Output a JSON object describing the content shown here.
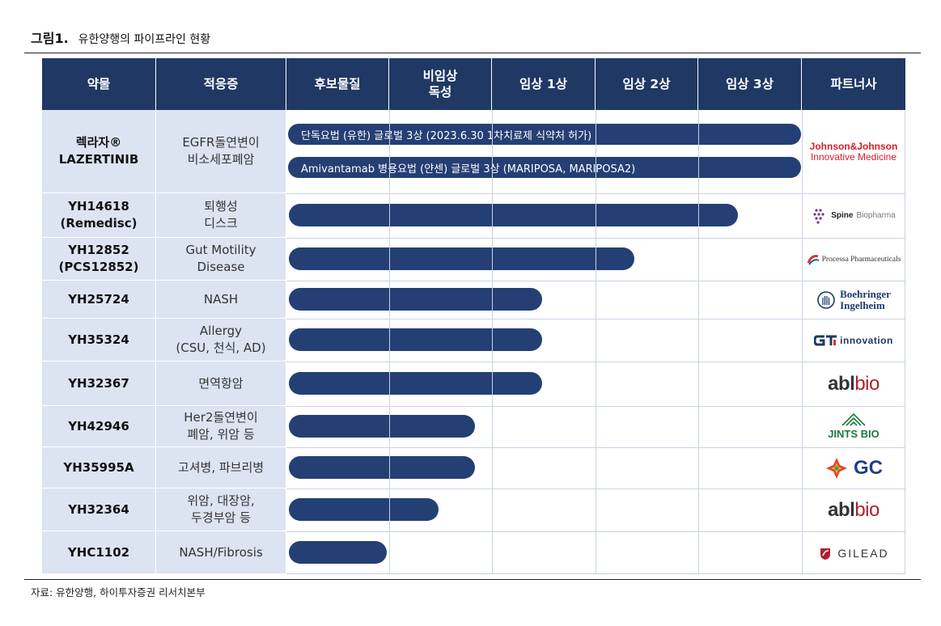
{
  "figure": {
    "number": "그림1.",
    "title": "유한양행의 파이프라인 현황",
    "source": "자료: 유한양행, 하이투자증권 리서치본부"
  },
  "columns": [
    "약물",
    "적응증",
    "후보물질",
    "비임상\n독성",
    "임상 1상",
    "임상 2상",
    "임상 3상",
    "파트너사"
  ],
  "rows": [
    {
      "drug": "렉라자®\nLAZERTINIB",
      "indication": "EGFR돌연변이\n비소세포폐암",
      "partner": "Johnson&Johnson Innovative Medicine",
      "bars": [
        "단독요법 (유한) 글로벌 3상  (2023.6.30 1차치료제  식약처 허가)",
        "Amivantamab 병용요법 (얀센)  글로벌 3상 (MARIPOSA, MARIPOSA2)"
      ]
    },
    {
      "drug": "YH14618\n(Remedisc)",
      "indication": "퇴행성\n디스크",
      "partner": "SpineBiopharma",
      "progress_stage": 4.4
    },
    {
      "drug": "YH12852\n(PCS12852)",
      "indication": "Gut Motility\nDisease",
      "partner": "Processa Pharmaceuticals",
      "progress_stage": 3.4
    },
    {
      "drug": "YH25724",
      "indication": "NASH",
      "partner": "Boehringer Ingelheim",
      "progress_stage": 2.5
    },
    {
      "drug": "YH35324",
      "indication": "Allergy\n(CSU, 천식, AD)",
      "partner": "GI innovation",
      "progress_stage": 2.5
    },
    {
      "drug": "YH32367",
      "indication": "면역항암",
      "partner": "ablbio",
      "progress_stage": 2.5
    },
    {
      "drug": "YH42946",
      "indication": "Her2돌연변이\n폐암, 위암 등",
      "partner": "JINTS BIO",
      "progress_stage": 1.85
    },
    {
      "drug": "YH35995A",
      "indication": "고셔병, 파브리병",
      "partner": "GC",
      "progress_stage": 1.85
    },
    {
      "drug": "YH32364",
      "indication": "위암, 대장암,\n두경부암 등",
      "partner": "ablbio",
      "progress_stage": 1.5
    },
    {
      "drug": "YHC1102",
      "indication": "NASH/Fibrosis",
      "partner": "GILEAD",
      "progress_stage": 1.0
    }
  ],
  "partner_labels": {
    "jj_top": "Johnson&Johnson",
    "jj_bottom": "Innovative Medicine",
    "spine_bold": "Spine",
    "spine_light": "Biopharma",
    "processa": "Processa Pharmaceuticals",
    "bi_top": "Boehringer",
    "bi_bottom": "Ingelheim",
    "gi": "innovation",
    "abl": "abl",
    "bio": "bio",
    "jints": "JINTS BIO",
    "gc": "GC",
    "gilead": "GILEAD"
  },
  "colors": {
    "header": "#1f3864",
    "bar": "#243f74",
    "row_bg": "#dce4f2"
  }
}
